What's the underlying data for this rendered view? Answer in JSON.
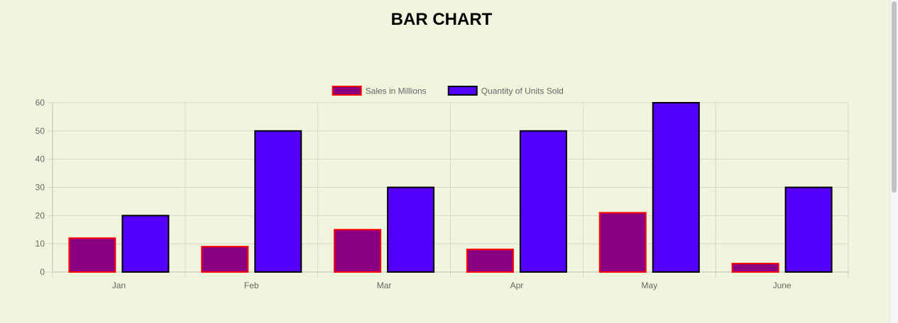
{
  "page": {
    "title": "BAR CHART"
  },
  "chart_data": {
    "type": "bar",
    "title": "BAR CHART",
    "categories": [
      "Jan",
      "Feb",
      "Mar",
      "Apr",
      "May",
      "June"
    ],
    "series": [
      {
        "name": "Sales in Millions",
        "values": [
          12,
          9,
          15,
          8,
          21,
          3
        ],
        "fill": "#8b0080",
        "stroke": "#ff0000"
      },
      {
        "name": "Quantity of Units Sold",
        "values": [
          20,
          50,
          30,
          50,
          60,
          30
        ],
        "fill": "#5500ff",
        "stroke": "#000000"
      }
    ],
    "ylim": [
      0,
      60
    ],
    "yticks": [
      0,
      10,
      20,
      30,
      40,
      50,
      60
    ],
    "grid": true,
    "legend": "top-center"
  }
}
